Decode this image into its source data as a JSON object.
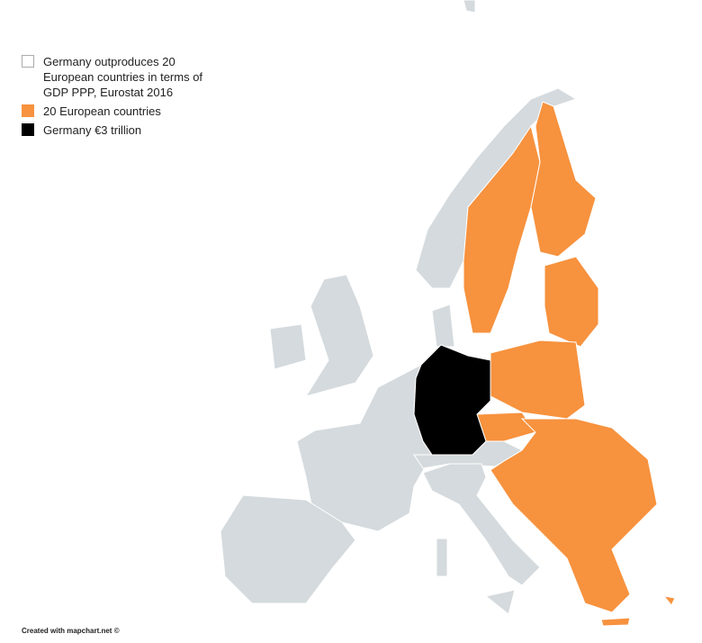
{
  "legend": {
    "items": [
      {
        "label": "Germany outproduces 20 European countries in terms of GDP PPP, Eurostat 2016",
        "color": "#ffffff"
      },
      {
        "label": "20 European countries",
        "color": "#f7923e"
      },
      {
        "label": "Germany €3 trillion",
        "color": "#000000"
      }
    ]
  },
  "colors": {
    "other": "#d4dadd",
    "highlight": "#f7923e",
    "germany": "#000000"
  },
  "credit": "Created with mapchart.net ©"
}
